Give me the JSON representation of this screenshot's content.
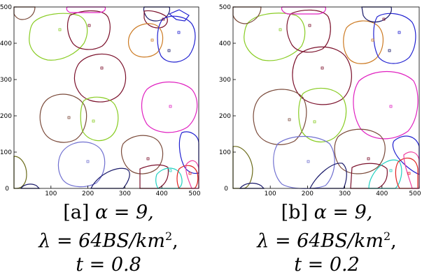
{
  "panels": [
    {
      "id": "a",
      "caption_line1_prefix": "[a] ",
      "caption_line1_math": "α = 9,",
      "caption_line2": "λ = 64BS/km",
      "caption_line2_sup": "2",
      "caption_line2_suffix": ",",
      "caption_line3": "t = 0.8",
      "x_ticks": [
        "100",
        "200",
        "300",
        "400",
        "500"
      ],
      "y_ticks": [
        "100",
        "200",
        "300",
        "400",
        "500"
      ],
      "origin_label": "0"
    },
    {
      "id": "b",
      "caption_line1_prefix": "[b] ",
      "caption_line1_math": "α = 9,",
      "caption_line2": "λ = 64BS/km",
      "caption_line2_sup": "2",
      "caption_line2_suffix": ",",
      "caption_line3": "t = 0.2",
      "x_ticks": [
        "100",
        "200",
        "300",
        "400",
        "500"
      ],
      "y_ticks": [
        "100",
        "200",
        "300",
        "400",
        "500"
      ],
      "origin_label": "0"
    }
  ],
  "colors": {
    "green": "#88cc22",
    "darkred": "#7a0f2a",
    "magenta": "#e020c0",
    "blue": "#2020d0",
    "brown": "#7a4a3a",
    "olive": "#6b6b1a",
    "orange": "#cc7a22",
    "purple": "#7070d0",
    "cyan": "#20d0c0",
    "darkblue": "#1a1a6a",
    "red": "#e02020",
    "pink": "#f040a0"
  }
}
